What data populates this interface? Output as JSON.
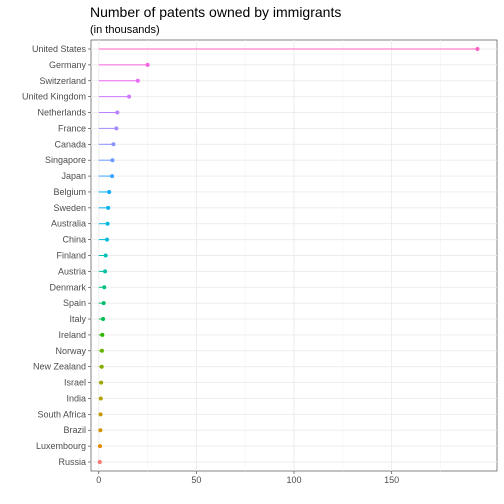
{
  "chart_data": {
    "type": "lollipop",
    "title": "Number of patents owned by immigrants",
    "subtitle": "(in thousands)",
    "xlabel": "",
    "ylabel": "",
    "xlim": [
      -4,
      204
    ],
    "x_ticks": [
      0,
      50,
      100,
      150
    ],
    "grid": true,
    "categories": [
      "United States",
      "Germany",
      "Switzerland",
      "United Kingdom",
      "Netherlands",
      "France",
      "Canada",
      "Singapore",
      "Japan",
      "Belgium",
      "Sweden",
      "Australia",
      "China",
      "Finland",
      "Austria",
      "Denmark",
      "Spain",
      "Italy",
      "Ireland",
      "Norway",
      "New Zealand",
      "Israel",
      "India",
      "South Africa",
      "Brazil",
      "Luxembourg",
      "Russia"
    ],
    "values": [
      194,
      25,
      20,
      15.5,
      9.5,
      9,
      7.5,
      7,
      6.8,
      5.3,
      4.8,
      4.5,
      4.2,
      3.5,
      3.2,
      2.8,
      2.5,
      2.2,
      1.8,
      1.6,
      1.5,
      1.2,
      1.0,
      0.9,
      0.8,
      0.6,
      0.5
    ],
    "colors": [
      "#ff61c3",
      "#f863df",
      "#e76bf3",
      "#d078ff",
      "#b983ff",
      "#a58aff",
      "#8b93ff",
      "#6a9bff",
      "#3aa4ff",
      "#00acfc",
      "#00b2f0",
      "#00b8e3",
      "#00bcd6",
      "#00c0b8",
      "#00c19f",
      "#00c085",
      "#00be6b",
      "#00bc52",
      "#2fb600",
      "#64b200",
      "#84ad00",
      "#9da700",
      "#b2a100",
      "#c49a00",
      "#d39200",
      "#e38900",
      "#f8766d"
    ]
  }
}
